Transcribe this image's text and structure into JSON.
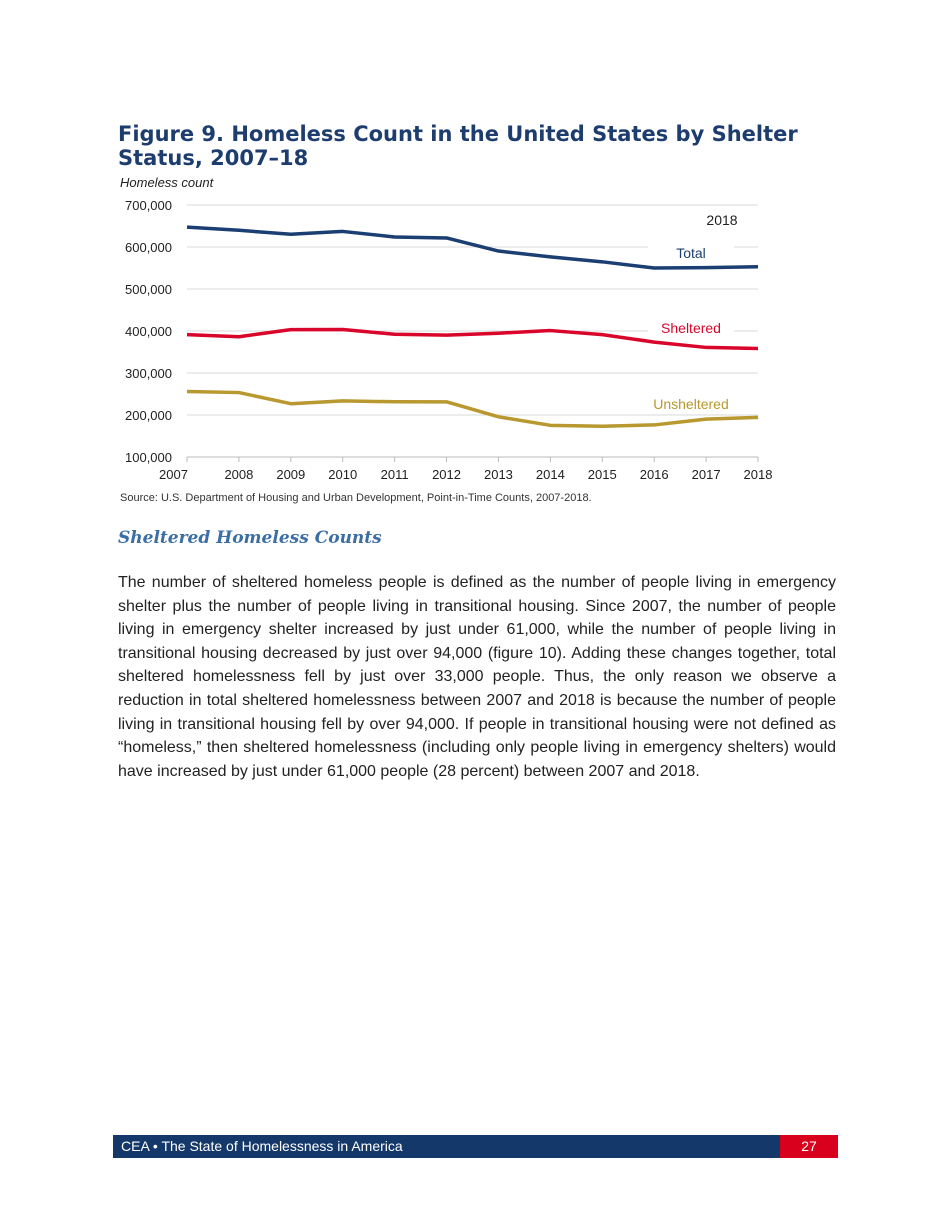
{
  "figure": {
    "title": "Figure 9. Homeless Count in the United States by Shelter Status, 2007–18",
    "source": "Source: U.S. Department of Housing and Urban Development, Point-in-Time Counts, 2007-2018."
  },
  "chart_data": {
    "type": "line",
    "ylabel": "Homeless count",
    "ylim": [
      100000,
      700000
    ],
    "yticks": [
      "100,000",
      "200,000",
      "300,000",
      "400,000",
      "500,000",
      "600,000",
      "700,000"
    ],
    "x": [
      "2007",
      "2008",
      "2009",
      "2010",
      "2011",
      "2012",
      "2013",
      "2014",
      "2015",
      "2016",
      "2017",
      "2018"
    ],
    "annotation": "2018",
    "grid": true,
    "series": [
      {
        "name": "Total",
        "color": "#1b3f72",
        "values": [
          647258,
          639784,
          630227,
          637077,
          623788,
          621553,
          590364,
          576450,
          564708,
          549928,
          550996,
          552830
        ]
      },
      {
        "name": "Sheltered",
        "color": "#d9052b",
        "values": [
          391401,
          386361,
          403308,
          403543,
          392316,
          390155,
          394698,
          401051,
          391440,
          373571,
          360867,
          358363
        ]
      },
      {
        "name": "Unsheltered",
        "color": "#b8982f",
        "values": [
          255857,
          253423,
          226919,
          233534,
          231472,
          231398,
          195666,
          175399,
          173268,
          176357,
          190129,
          194467
        ]
      }
    ]
  },
  "section": {
    "heading": "Sheltered Homeless Counts",
    "paragraph": "The number of sheltered homeless people is defined as the number of people living in emergency shelter plus the number of people living in transitional housing. Since 2007, the number of people living in emergency shelter increased by just under 61,000, while the number of people living in transitional housing decreased by just over 94,000 (figure 10). Adding these changes together, total sheltered homelessness fell by just over 33,000 people. Thus, the only reason we observe a reduction in total sheltered homelessness between 2007 and 2018 is because the number of people living in transitional housing fell by over 94,000. If people in transitional housing were not defined as “homeless,” then sheltered homelessness (including only people living in emergency shelters) would have increased by just under 61,000 people (28 percent) between 2007 and 2018."
  },
  "footer": {
    "text": "CEA • The State of Homelessness in America",
    "page": "27"
  }
}
